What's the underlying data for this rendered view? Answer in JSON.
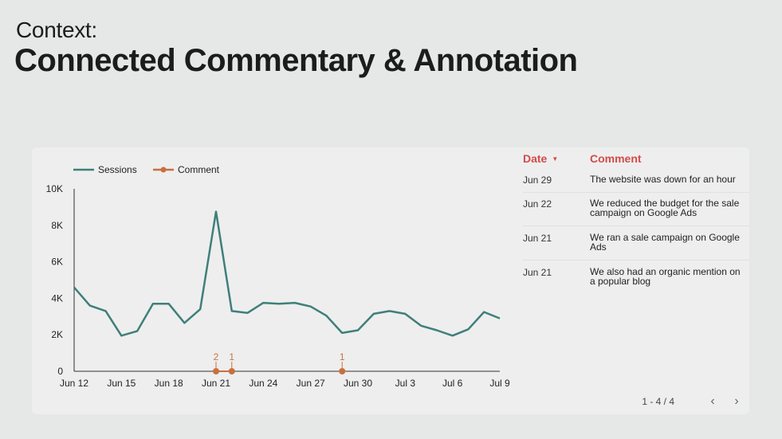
{
  "header": {
    "context": "Context:",
    "title": "Connected Commentary & Annotation"
  },
  "colors": {
    "sessions_line": "#3f7f7a",
    "comment_marker": "#c8703c",
    "table_header": "#d24b4b"
  },
  "chart_data": {
    "type": "line",
    "legend": {
      "placement": "top-left",
      "entries": [
        "Sessions",
        "Comment"
      ]
    },
    "x_ticks": [
      "Jun 12",
      "Jun 15",
      "Jun 18",
      "Jun 21",
      "Jun 24",
      "Jun 27",
      "Jun 30",
      "Jul 3",
      "Jul 6",
      "Jul 9"
    ],
    "y_ticks": [
      "0",
      "2K",
      "4K",
      "6K",
      "8K",
      "10K"
    ],
    "ylim": [
      0,
      10000
    ],
    "series": [
      {
        "name": "Sessions",
        "x": [
          "Jun 12",
          "Jun 13",
          "Jun 14",
          "Jun 15",
          "Jun 16",
          "Jun 17",
          "Jun 18",
          "Jun 19",
          "Jun 20",
          "Jun 21",
          "Jun 22",
          "Jun 23",
          "Jun 24",
          "Jun 25",
          "Jun 26",
          "Jun 27",
          "Jun 28",
          "Jun 29",
          "Jun 30",
          "Jul 1",
          "Jul 2",
          "Jul 3",
          "Jul 4",
          "Jul 5",
          "Jul 6",
          "Jul 7",
          "Jul 8",
          "Jul 9"
        ],
        "values": [
          4600,
          3600,
          3300,
          1950,
          2200,
          3700,
          3700,
          2650,
          3400,
          8750,
          3300,
          3200,
          3750,
          3700,
          3750,
          3550,
          3050,
          2100,
          2250,
          3150,
          3300,
          3150,
          2500,
          2250,
          1950,
          2300,
          3250,
          2900
        ]
      },
      {
        "name": "Comment",
        "points": [
          {
            "x": "Jun 21",
            "y": 0,
            "label": "2"
          },
          {
            "x": "Jun 22",
            "y": 0,
            "label": "1"
          },
          {
            "x": "Jun 29",
            "y": 0,
            "label": "1"
          }
        ]
      }
    ]
  },
  "table": {
    "header_date": "Date",
    "header_comment": "Comment",
    "rows": [
      {
        "date": "Jun 29",
        "comment": "The website was down for an hour"
      },
      {
        "date": "Jun 22",
        "comment": "We reduced the budget for the sale campaign on Google Ads"
      },
      {
        "date": "Jun 21",
        "comment": "We ran a sale campaign on Google Ads"
      },
      {
        "date": "Jun 21",
        "comment": "We also had an organic mention on a popular blog"
      }
    ],
    "pagination": "1 - 4 / 4"
  }
}
